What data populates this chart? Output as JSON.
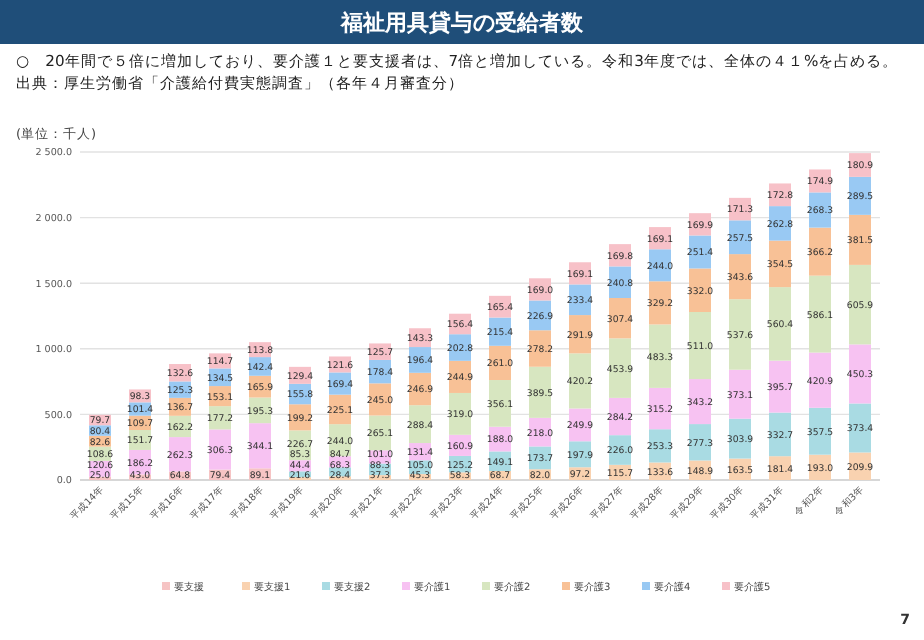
{
  "chart_data": {
    "type": "bar",
    "title": "福祉用具貸与の受給者数",
    "subtitle": "○　20年間で５倍に増加しており、要介護１と要支援者は、7倍と増加している。令和3年度では、全体の４１%を占める。出典：厚生労働省「介護給付費実態調査」（各年４月審査分）",
    "ylabel": "(単位：千人)",
    "annotations": [
      "7"
    ],
    "categories": [
      "平成14年",
      "平成15年",
      "平成16年",
      "平成17年",
      "平成18年",
      "平成19年",
      "平成20年",
      "平成21年",
      "平成22年",
      "平成23年",
      "平成24年",
      "平成25年",
      "平成26年",
      "平成27年",
      "平成28年",
      "平成29年",
      "平成30年",
      "平成31年",
      "令和2年",
      "令和3年"
    ],
    "stacked": true,
    "grid": "y",
    "legend": "bottom",
    "ylim": [
      0,
      2500
    ],
    "yticks": [
      {
        "value": 0,
        "label": "0.0"
      },
      {
        "value": 500,
        "label": "500.0"
      },
      {
        "value": 1000,
        "label": "1 000.0"
      },
      {
        "value": 1500,
        "label": "1 500.0"
      },
      {
        "value": 2000,
        "label": "2 000.0"
      },
      {
        "value": 2500,
        "label": "2 500.0"
      }
    ],
    "series": [
      {
        "name": "要支援",
        "color": "#f6c4c4",
        "values": [
          25.0,
          43.0,
          64.8,
          79.4,
          89.1,
          null,
          null,
          null,
          null,
          null,
          null,
          null,
          null,
          null,
          null,
          null,
          null,
          null,
          null,
          null
        ],
        "value_labels": [
          "25.0",
          "43.0",
          "64.8",
          "79.4",
          "89.1",
          null,
          null,
          null,
          null,
          null,
          null,
          null,
          null,
          null,
          null,
          null,
          null,
          null,
          null,
          null
        ]
      },
      {
        "name": "要支援1",
        "color": "#f9d2b0",
        "values": [
          null,
          null,
          null,
          null,
          null,
          21.6,
          28.4,
          37.3,
          45.3,
          58.3,
          68.7,
          82.0,
          97.2,
          115.7,
          133.6,
          148.9,
          163.5,
          181.4,
          193.0,
          209.9
        ],
        "value_labels": [
          null,
          null,
          null,
          null,
          null,
          "21.6",
          "28.4",
          "37.3",
          "45.3",
          "58.3",
          "68.7",
          "82.0",
          "97.2",
          "115.7",
          "133.6",
          "148.9",
          "163.5",
          "181.4",
          "193.0",
          "209.9"
        ]
      },
      {
        "name": "要支援2",
        "color": "#a9dbe3",
        "values": [
          null,
          null,
          null,
          null,
          null,
          44.4,
          68.3,
          88.3,
          105.0,
          125.2,
          149.1,
          173.7,
          197.9,
          226.0,
          253.3,
          277.3,
          303.9,
          332.7,
          357.5,
          373.4
        ],
        "value_labels": [
          null,
          null,
          null,
          null,
          null,
          "44.4",
          "68.3",
          "88.3",
          "105.0",
          "125.2",
          "149.1",
          "173.7",
          "197.9",
          "226.0",
          "253.3",
          "277.3",
          "303.9",
          "332.7",
          "357.5",
          "373.4"
        ]
      },
      {
        "name": "要介護1",
        "color": "#f7c2f2",
        "values": [
          120.6,
          186.2,
          262.3,
          306.3,
          344.1,
          85.3,
          84.7,
          101.0,
          131.4,
          160.9,
          188.0,
          218.0,
          249.9,
          284.2,
          315.2,
          343.2,
          373.1,
          395.7,
          420.9,
          450.3
        ],
        "value_labels": [
          "120.6",
          "186.2",
          "262.3",
          "306.3",
          "344.1",
          "85.3",
          "84.7",
          "101.0",
          "131.4",
          "160.9",
          "188.0",
          "218.0",
          "249.9",
          "284.2",
          "315.2",
          "343.2",
          "373.1",
          "395.7",
          "420.9",
          "450.3"
        ]
      },
      {
        "name": "要介護2",
        "color": "#d7e6c0",
        "values": [
          108.6,
          151.7,
          162.2,
          177.2,
          195.3,
          226.7,
          244.0,
          265.1,
          288.4,
          319.0,
          356.1,
          389.5,
          420.2,
          453.9,
          483.3,
          511.0,
          537.6,
          560.4,
          586.1,
          605.9
        ],
        "value_labels": [
          "108.6",
          "151.7",
          "162.2",
          "177.2",
          "195.3",
          "226.7",
          "244.0",
          "265.1",
          "288.4",
          "319.0",
          "356.1",
          "389.5",
          "420.2",
          "453.9",
          "483.3",
          "511.0",
          "537.6",
          "560.4",
          "586.1",
          "605.9"
        ]
      },
      {
        "name": "要介護3",
        "color": "#f8c196",
        "values": [
          82.6,
          109.7,
          136.7,
          153.1,
          165.9,
          199.2,
          225.1,
          245.0,
          246.9,
          244.9,
          261.0,
          278.2,
          291.9,
          307.4,
          329.2,
          332.0,
          343.6,
          354.5,
          366.2,
          381.5
        ],
        "value_labels": [
          "82.6",
          "109.7",
          "136.7",
          "153.1",
          "165.9",
          "199.2",
          "225.1",
          "245.0",
          "246.9",
          "244.9",
          "261.0",
          "278.2",
          "291.9",
          "307.4",
          "329.2",
          "332.0",
          "343.6",
          "354.5",
          "366.2",
          "381.5"
        ]
      },
      {
        "name": "要介護4",
        "color": "#99c9f3",
        "values": [
          80.4,
          101.4,
          125.3,
          134.5,
          142.4,
          155.8,
          169.4,
          178.4,
          196.4,
          202.8,
          215.4,
          226.9,
          233.4,
          240.8,
          244.0,
          251.4,
          257.5,
          262.8,
          268.3,
          289.5
        ],
        "value_labels": [
          "80.4",
          "101.4",
          "125.3",
          "134.5",
          "142.4",
          "155.8",
          "169.4",
          "178.4",
          "196.4",
          "202.8",
          "215.4",
          "226.9",
          "233.4",
          "240.8",
          "244.0",
          "251.4",
          "257.5",
          "262.8",
          "268.3",
          "289.5"
        ]
      },
      {
        "name": "要介護5",
        "color": "#f7c1c8",
        "values": [
          79.7,
          98.3,
          132.6,
          114.7,
          113.8,
          129.4,
          121.6,
          125.7,
          143.3,
          156.4,
          165.4,
          169.0,
          169.1,
          169.8,
          169.1,
          169.9,
          171.3,
          172.8,
          174.9,
          180.9
        ],
        "value_labels": [
          "79.7",
          "98.3",
          "132.6",
          "114.7",
          "113.8",
          "129.4",
          "121.6",
          "125.7",
          "143.3",
          "156.4",
          "165.4",
          "169.0",
          "169.1",
          "169.8",
          "169.1",
          "169.9",
          "171.3",
          "172.8",
          "174.9",
          "180.9"
        ]
      }
    ]
  }
}
